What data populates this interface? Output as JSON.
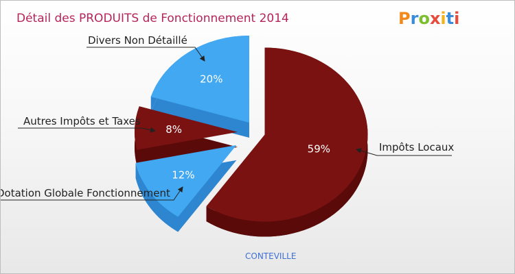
{
  "title": "Détail des PRODUITS de Fonctionnement 2014",
  "logo": {
    "text": "Proxiti",
    "colors": [
      "#f2891b",
      "#3a8bd8",
      "#7bbf2e",
      "#e84b3c",
      "#f2b21b",
      "#3a8bd8",
      "#e84b3c"
    ]
  },
  "footer": {
    "town": "CONTEVILLE"
  },
  "colors": {
    "blue": "#42a8f2",
    "blue_dark": "#2d86cf",
    "red": "#7a1212",
    "red_dark": "#5b0a0a"
  },
  "chart_data": {
    "type": "pie",
    "slices": [
      {
        "label": "Impôts Locaux",
        "value": 59,
        "pct_label": "59%",
        "color": "#7a1212"
      },
      {
        "label": "Dotation Globale Fonctionnement",
        "value": 12,
        "pct_label": "12%",
        "color": "#42a8f2"
      },
      {
        "label": "Autres Impôts et Taxes",
        "value": 8,
        "pct_label": "8%",
        "color": "#7a1212"
      },
      {
        "label": "Divers Non Détaillé",
        "value": 20,
        "pct_label": "20%",
        "color": "#42a8f2"
      }
    ]
  }
}
